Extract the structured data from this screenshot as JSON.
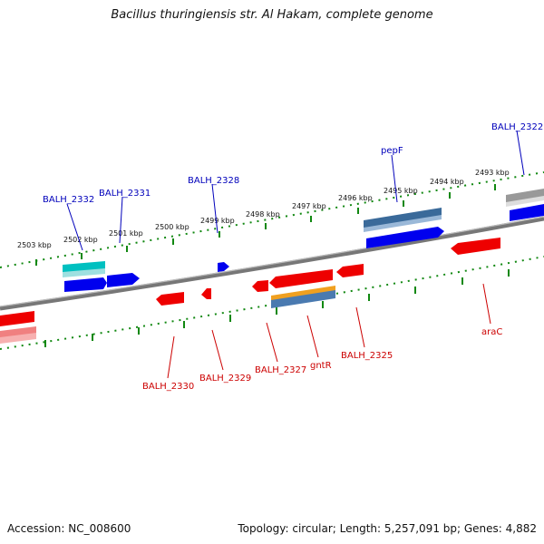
{
  "title": "Bacillus thuringiensis str. Al Hakam, complete genome",
  "footer": {
    "accession": "Accession: NC_008600",
    "summary": "Topology: circular; Length: 5,257,091 bp; Genes: 4,882"
  },
  "ticks": [
    "2503 kbp",
    "2502 kbp",
    "2501 kbp",
    "2500 kbp",
    "2499 kbp",
    "2498 kbp",
    "2497 kbp",
    "2496 kbp",
    "2495 kbp",
    "2494 kbp",
    "2493 kbp"
  ],
  "genes_forward": [
    "BALH_2332",
    "BALH_2331",
    "BALH_2328",
    "pepF",
    "BALH_2322"
  ],
  "genes_reverse": [
    "BALH_2330",
    "BALH_2329",
    "BALH_2327",
    "gntR",
    "BALH_2325",
    "araC"
  ],
  "colors": {
    "forward_label": "#0000bb",
    "reverse_label": "#cc0000",
    "forward_gene": "#0000ee",
    "reverse_gene": "#ee0000",
    "rna_gene": "#00c0c0",
    "pseudo_gene": "#4a7ab0",
    "orange_gene": "#f0a020",
    "ruler": "#118811",
    "backbone": "#777777"
  }
}
